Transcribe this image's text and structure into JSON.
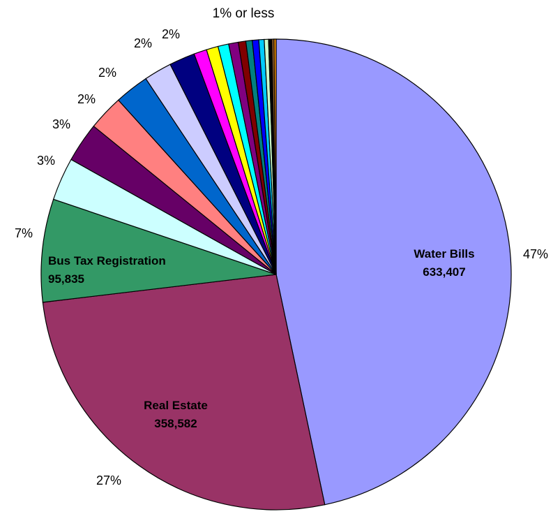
{
  "chart_data": {
    "type": "pie",
    "start_angle": "12 o'clock",
    "direction": "clockwise",
    "small_slices_note": "1% or less",
    "slices": [
      {
        "label": "Water Bills",
        "value": 633407,
        "value_label": "633,407",
        "percent_label": "47%",
        "color": "#9999FF"
      },
      {
        "label": "Real Estate",
        "value": 358582,
        "value_label": "358,582",
        "percent_label": "27%",
        "color": "#993366"
      },
      {
        "label": "Bus Tax Registration",
        "value": 95835,
        "value_label": "95,835",
        "percent_label": "7%",
        "color": "#339966"
      },
      {
        "label": "",
        "value": 40000,
        "percent_label": "3%",
        "color": "#CCFFFF"
      },
      {
        "label": "",
        "value": 37000,
        "percent_label": "3%",
        "color": "#660066"
      },
      {
        "label": "",
        "value": 33000,
        "percent_label": "2%",
        "color": "#FF8080"
      },
      {
        "label": "",
        "value": 32000,
        "percent_label": "2%",
        "color": "#0066CC"
      },
      {
        "label": "",
        "value": 26000,
        "percent_label": "2%",
        "color": "#CCCCFF"
      },
      {
        "label": "",
        "value": 24000,
        "percent_label": "2%",
        "color": "#000080"
      },
      {
        "label": "",
        "value": 12000,
        "percent_label": "",
        "color": "#FF00FF"
      },
      {
        "label": "",
        "value": 11000,
        "percent_label": "",
        "color": "#FFFF00"
      },
      {
        "label": "",
        "value": 10000,
        "percent_label": "",
        "color": "#00FFFF"
      },
      {
        "label": "",
        "value": 9000,
        "percent_label": "",
        "color": "#800080"
      },
      {
        "label": "",
        "value": 7000,
        "percent_label": "",
        "color": "#800000"
      },
      {
        "label": "",
        "value": 6000,
        "percent_label": "",
        "color": "#008080"
      },
      {
        "label": "",
        "value": 6000,
        "percent_label": "",
        "color": "#0000FF"
      },
      {
        "label": "",
        "value": 5000,
        "percent_label": "",
        "color": "#00CCFF"
      },
      {
        "label": "",
        "value": 4000,
        "percent_label": "",
        "color": "#CCFFCC"
      },
      {
        "label": "",
        "value": 3000,
        "percent_label": "",
        "color": "#000000"
      },
      {
        "label": "",
        "value": 2000,
        "percent_label": "",
        "color": "#996633"
      },
      {
        "label": "",
        "value": 2000,
        "percent_label": "",
        "color": "#FF9900"
      }
    ]
  }
}
